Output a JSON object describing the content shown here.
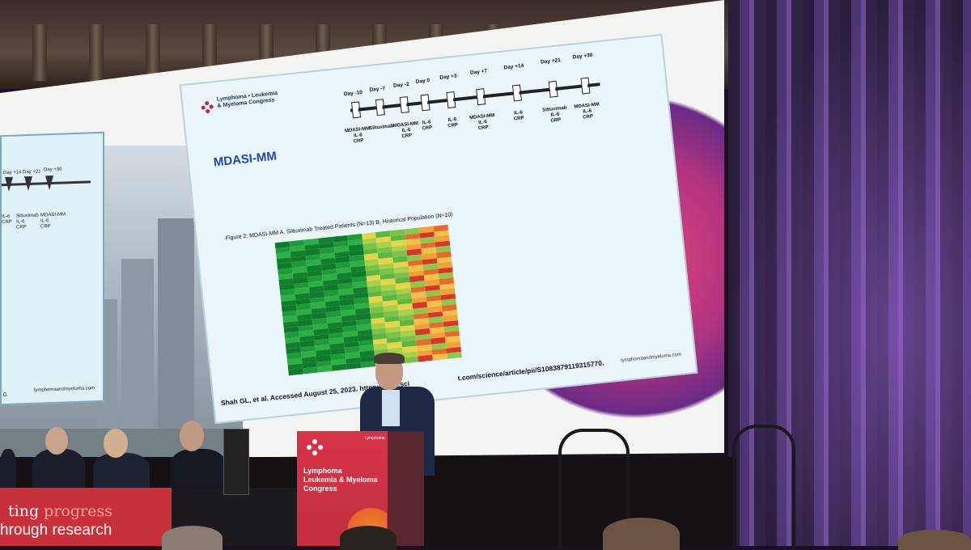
{
  "left_slide": {
    "days": [
      "Day +14",
      "Day +21",
      "Day +30"
    ],
    "labels": [
      "IL-6\nCRP",
      "Siltuximab\nIL-6\nCRP",
      "MDASI-MM\nIL-6\nCRP"
    ],
    "footer_left": "0.",
    "footer_site": "lymphomaandmyeloma.com"
  },
  "slide": {
    "logo_line1": "Lymphoma • Leukemia",
    "logo_line2": "& Myeloma Congress",
    "title": "MDASI-MM",
    "days": [
      "Day -10",
      "Day -7",
      "Day -2",
      "Day 0",
      "Day +3",
      "Day +7",
      "Day +14",
      "Day +21",
      "Day +30"
    ],
    "assessments": [
      "MDASI-MM\nIL-6\nCRP",
      "Siltuximab",
      "MDASI-MM\nIL-6\nCRP",
      "IL-6\nCRP",
      "IL-6\nCRP",
      "MDASI-MM\nIL-6\nCRP",
      "IL-6\nCRP",
      "Siltuximab\nIL-6\nCRP",
      "MDASI-MM\nIL-6\nCRP"
    ],
    "figure_caption": "Figure 2: MDASI-MM A. Siltuximab Treated Patients (N=13) B. Historical Population (N=10)",
    "citation": "Shah GL, et al. Accessed August 25, 2023. https://www.sci",
    "citation_tail": "t.com/science/article/pii/S1083879119315770.",
    "site": "lymphomaandmyeloma.com"
  },
  "podium": {
    "line1": "Lymphoma",
    "line2": "Leukemia & Myeloma",
    "line3": "Congress",
    "top_right": "Lymphoma"
  },
  "banner": {
    "line1_a": "ting ",
    "line1_b": "progress",
    "line2": "hrough research"
  },
  "colors": {
    "slide_title": "#2048a8",
    "podium": "#d63548",
    "banner": "#c8303b",
    "heatmap_green": "#1e9a3a",
    "heatmap_red": "#d9362b"
  }
}
